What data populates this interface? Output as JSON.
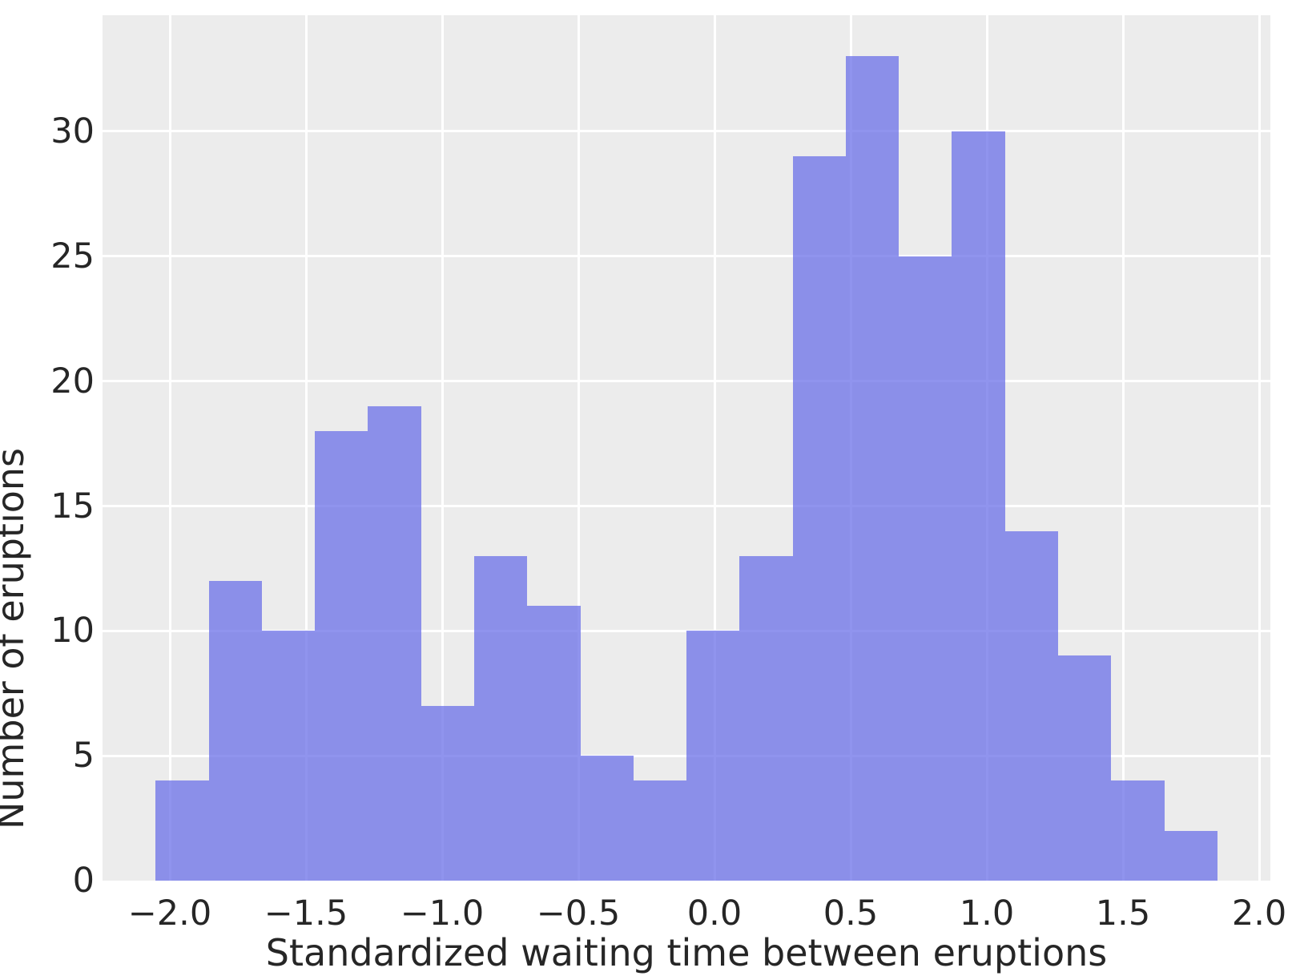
{
  "chart_data": {
    "type": "bar",
    "subtype": "histogram",
    "title": "",
    "xlabel": "Standardized waiting time between eruptions",
    "ylabel": "Number of eruptions",
    "bin_start": -2.052,
    "bin_width": 0.194925,
    "bin_edges": [
      -2.052,
      -1.8571,
      -1.6622,
      -1.4673,
      -1.2723,
      -1.0774,
      -0.8825,
      -0.6876,
      -0.4926,
      -0.2977,
      -0.1028,
      0.0921,
      0.2871,
      0.482,
      0.6769,
      0.8718,
      1.0668,
      1.2617,
      1.4566,
      1.6515,
      1.8465
    ],
    "counts": [
      4,
      12,
      10,
      18,
      19,
      7,
      13,
      11,
      5,
      4,
      10,
      13,
      29,
      33,
      25,
      30,
      14,
      9,
      4,
      2
    ],
    "total_observations": 272,
    "x_ticks": [
      {
        "v": -2.0,
        "label": "−2.0"
      },
      {
        "v": -1.5,
        "label": "−1.5"
      },
      {
        "v": -1.0,
        "label": "−1.0"
      },
      {
        "v": -0.5,
        "label": "−0.5"
      },
      {
        "v": 0.0,
        "label": "0.0"
      },
      {
        "v": 0.5,
        "label": "0.5"
      },
      {
        "v": 1.0,
        "label": "1.0"
      },
      {
        "v": 1.5,
        "label": "1.5"
      },
      {
        "v": 2.0,
        "label": "2.0"
      }
    ],
    "y_ticks": [
      {
        "v": 0,
        "label": "0"
      },
      {
        "v": 5,
        "label": "5"
      },
      {
        "v": 10,
        "label": "10"
      },
      {
        "v": 15,
        "label": "15"
      },
      {
        "v": 20,
        "label": "20"
      },
      {
        "v": 25,
        "label": "25"
      },
      {
        "v": 30,
        "label": "30"
      }
    ],
    "xlim": [
      -2.247,
      2.041
    ],
    "ylim": [
      0,
      34.65
    ],
    "grid": true,
    "legend": false,
    "colors": {
      "bar_rgba": "rgba(107,112,232,0.75)",
      "plot_background": "#ececec",
      "gridline": "#ffffff",
      "text": "#262626",
      "page_background": "#ffffff"
    }
  }
}
